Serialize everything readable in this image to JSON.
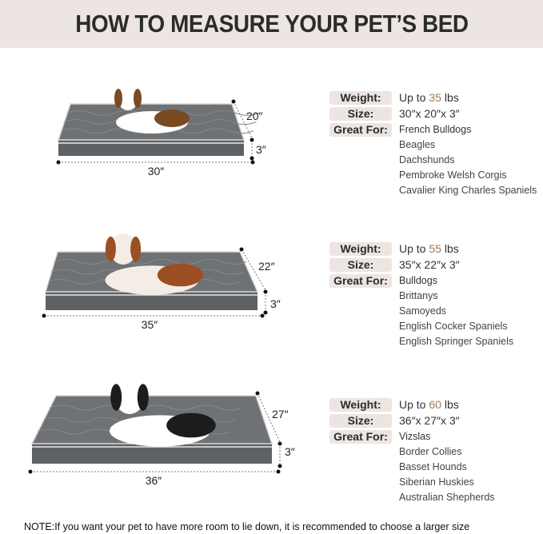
{
  "title": "HOW TO MEASURE YOUR PET’S BED",
  "labels": {
    "weight": "Weight:",
    "size": "Size:",
    "great_for": "Great For:"
  },
  "beds": [
    {
      "length": "30″",
      "width": "20″",
      "height": "3″",
      "weight_prefix": "Up to ",
      "weight_num": "35",
      "weight_unit": " lbs",
      "size": "30″x 20″x 3″",
      "breeds": [
        "French Bulldogs",
        "Beagles",
        "Dachshunds",
        "Pembroke Welsh Corgis",
        "Cavalier King Charles Spaniels"
      ]
    },
    {
      "length": "35″",
      "width": "22″",
      "height": "3″",
      "weight_prefix": "Up to ",
      "weight_num": "55",
      "weight_unit": " lbs",
      "size": "35″x 22″x 3″",
      "breeds": [
        "Bulldogs",
        "Brittanys",
        "Samoyeds",
        "English Cocker Spaniels",
        "English Springer Spaniels"
      ]
    },
    {
      "length": "36″",
      "width": "27″",
      "height": "3″",
      "weight_prefix": "Up to ",
      "weight_num": "60",
      "weight_unit": " lbs",
      "size": "36″x 27″x 3″",
      "breeds": [
        "Vizslas",
        "Border Collies",
        "Basset Hounds",
        "Siberian Huskies",
        "Australian Shepherds"
      ]
    }
  ],
  "note": "NOTE:If you want your pet to have more room to lie down, it is recommended to choose a larger size",
  "colors": {
    "header_bg": "#ece5e1",
    "accent": "#a07a55",
    "bed": "#6f7275"
  }
}
